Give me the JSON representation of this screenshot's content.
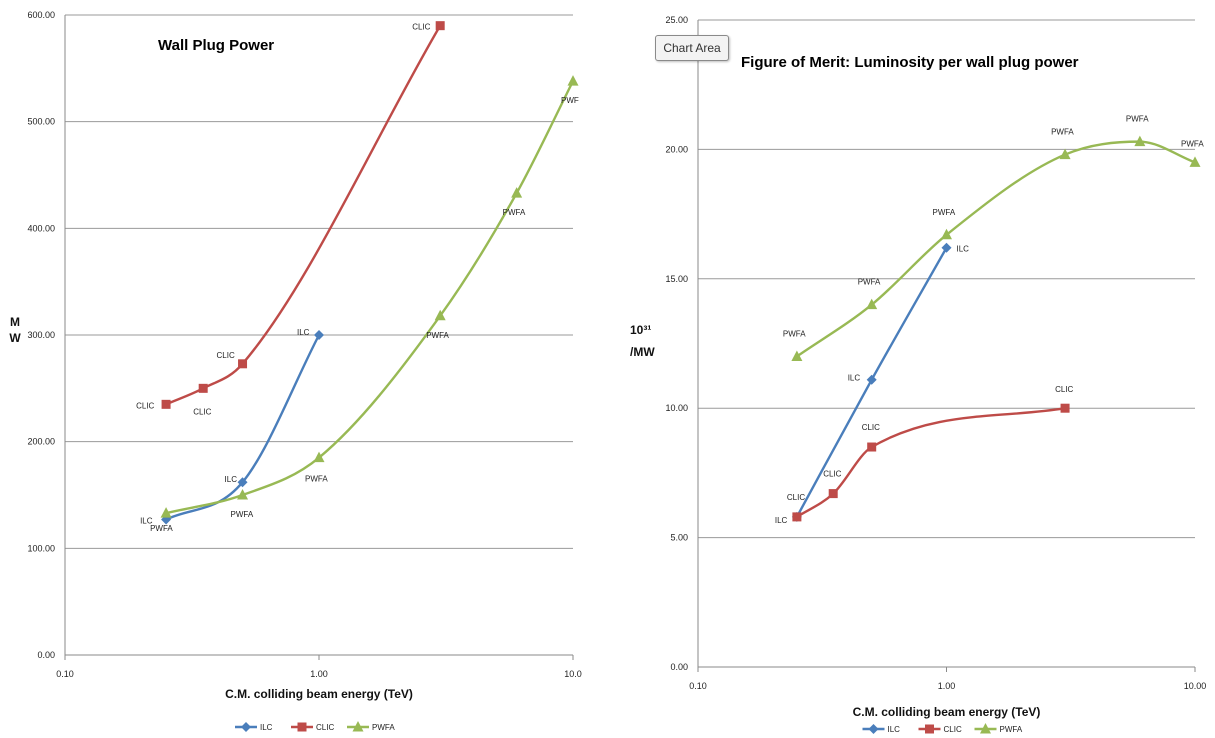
{
  "tooltip": "Chart Area",
  "chart_data": [
    {
      "type": "line",
      "title": "Wall Plug Power",
      "xlabel": "C.M. colliding beam energy (TeV)",
      "ylabel": "M W",
      "xscale": "log",
      "xlim": [
        0.1,
        10
      ],
      "ylim": [
        0,
        600
      ],
      "xticks": [
        "0.10",
        "1.00",
        "10.0"
      ],
      "yticks": [
        "0.00",
        "100.00",
        "200.00",
        "300.00",
        "400.00",
        "500.00",
        "600.00"
      ],
      "grid": true,
      "legend": "bottom",
      "series": [
        {
          "name": "ILC",
          "color": "#4a7ebb",
          "marker": "diamond",
          "x": [
            0.25,
            0.5,
            1.0
          ],
          "y": [
            127,
            162,
            300
          ],
          "labels": [
            "ILC",
            "ILC",
            "ILC"
          ]
        },
        {
          "name": "CLIC",
          "color": "#be4b48",
          "marker": "square",
          "x": [
            0.25,
            0.35,
            0.5,
            3.0
          ],
          "y": [
            235,
            250,
            273,
            590
          ],
          "labels": [
            "CLIC",
            "CLIC",
            "CLIC",
            "CLIC"
          ]
        },
        {
          "name": "PWFA",
          "color": "#98b954",
          "marker": "triangle",
          "x": [
            0.25,
            0.5,
            1.0,
            3.0,
            6.0,
            10.0
          ],
          "y": [
            133,
            150,
            185,
            318,
            433,
            538
          ],
          "labels": [
            "PWFA",
            "PWFA",
            "PWFA",
            "PWFA",
            "PWFA",
            "PWF"
          ]
        }
      ]
    },
    {
      "type": "line",
      "title": "Figure of Merit: Luminosity per wall plug power",
      "xlabel": "C.M. colliding beam energy (TeV)",
      "ylabel_top": "10³¹",
      "ylabel_bottom": "/MW",
      "xscale": "log",
      "xlim": [
        0.1,
        10
      ],
      "ylim": [
        0,
        25
      ],
      "xticks": [
        "0.10",
        "1.00",
        "10.00"
      ],
      "yticks": [
        "0.00",
        "5.00",
        "10.00",
        "15.00",
        "20.00",
        "25.00"
      ],
      "grid": true,
      "legend": "bottom",
      "series": [
        {
          "name": "ILC",
          "color": "#4a7ebb",
          "marker": "diamond",
          "x": [
            0.25,
            0.5,
            1.0
          ],
          "y": [
            5.8,
            11.1,
            16.2
          ],
          "labels": [
            "ILC",
            "ILC",
            "ILC"
          ]
        },
        {
          "name": "CLIC",
          "color": "#be4b48",
          "marker": "square",
          "x": [
            0.25,
            0.35,
            0.5,
            3.0
          ],
          "y": [
            5.8,
            6.7,
            8.5,
            10.0
          ],
          "labels": [
            "CLIC",
            "CLIC",
            "CLIC",
            "CLIC"
          ]
        },
        {
          "name": "PWFA",
          "color": "#98b954",
          "marker": "triangle",
          "x": [
            0.25,
            0.5,
            1.0,
            3.0,
            6.0,
            10.0
          ],
          "y": [
            12.0,
            14.0,
            16.7,
            19.8,
            20.3,
            19.5
          ],
          "labels": [
            "PWFA",
            "PWFA",
            "PWFA",
            "PWFA",
            "PWFA",
            "PWFA"
          ]
        }
      ]
    }
  ]
}
